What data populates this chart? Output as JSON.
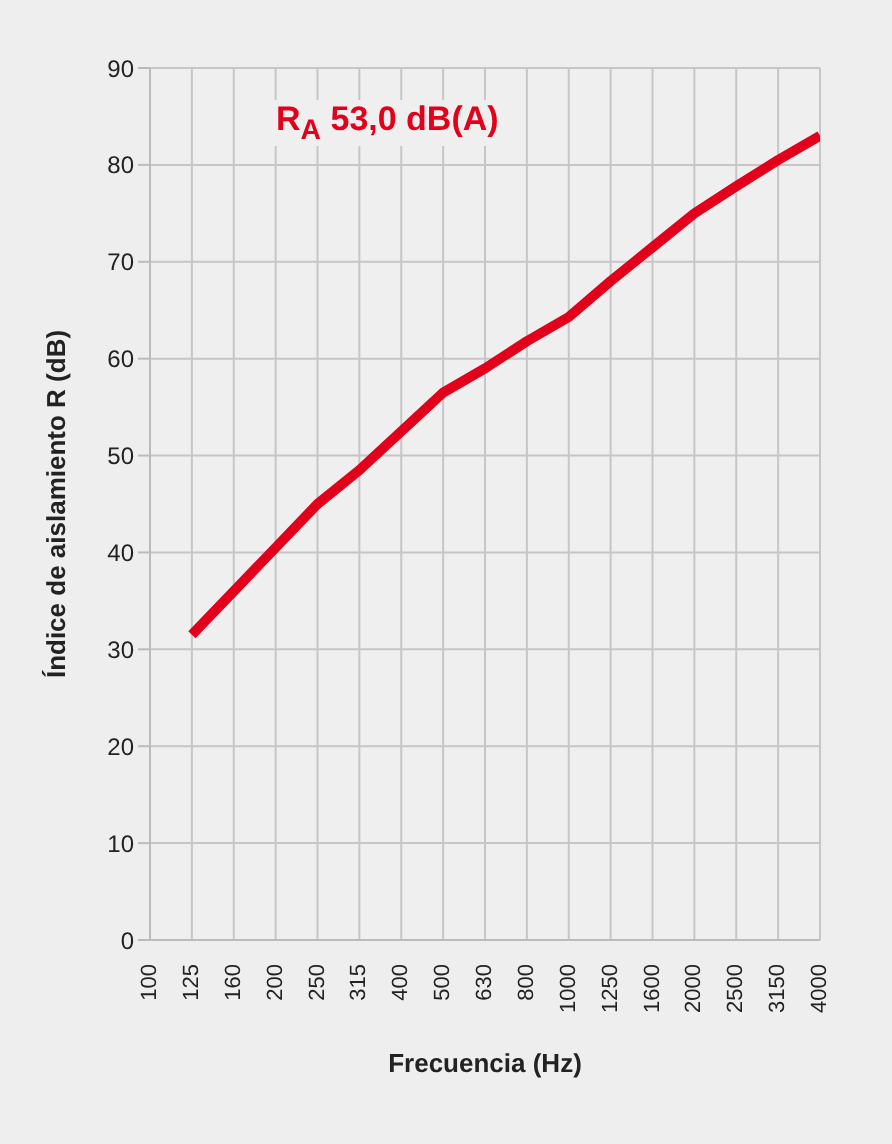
{
  "chart_data": {
    "type": "line",
    "xlabel": "Frecuencia (Hz)",
    "ylabel": "Índice de aislamiento R (dB)",
    "annotations": [
      "R$_{A}$ 53,0 dB(A)"
    ],
    "categories": [
      "100",
      "125",
      "160",
      "200",
      "250",
      "315",
      "400",
      "500",
      "630",
      "800",
      "1000",
      "1250",
      "1600",
      "2000",
      "2500",
      "3150",
      "4000"
    ],
    "series": [
      {
        "color": "#e2001a",
        "values": [
          null,
          31.5,
          36,
          40.5,
          45,
          48.5,
          52.5,
          56.5,
          59,
          61.8,
          64.3,
          68,
          71.5,
          75,
          77.8,
          80.5,
          83
        ]
      }
    ],
    "ylim": [
      0,
      90
    ],
    "yticks": [
      0,
      10,
      20,
      30,
      40,
      50,
      60,
      70,
      80,
      90
    ],
    "grid": true,
    "legend": false,
    "marker": "none",
    "line_style": "solid"
  }
}
